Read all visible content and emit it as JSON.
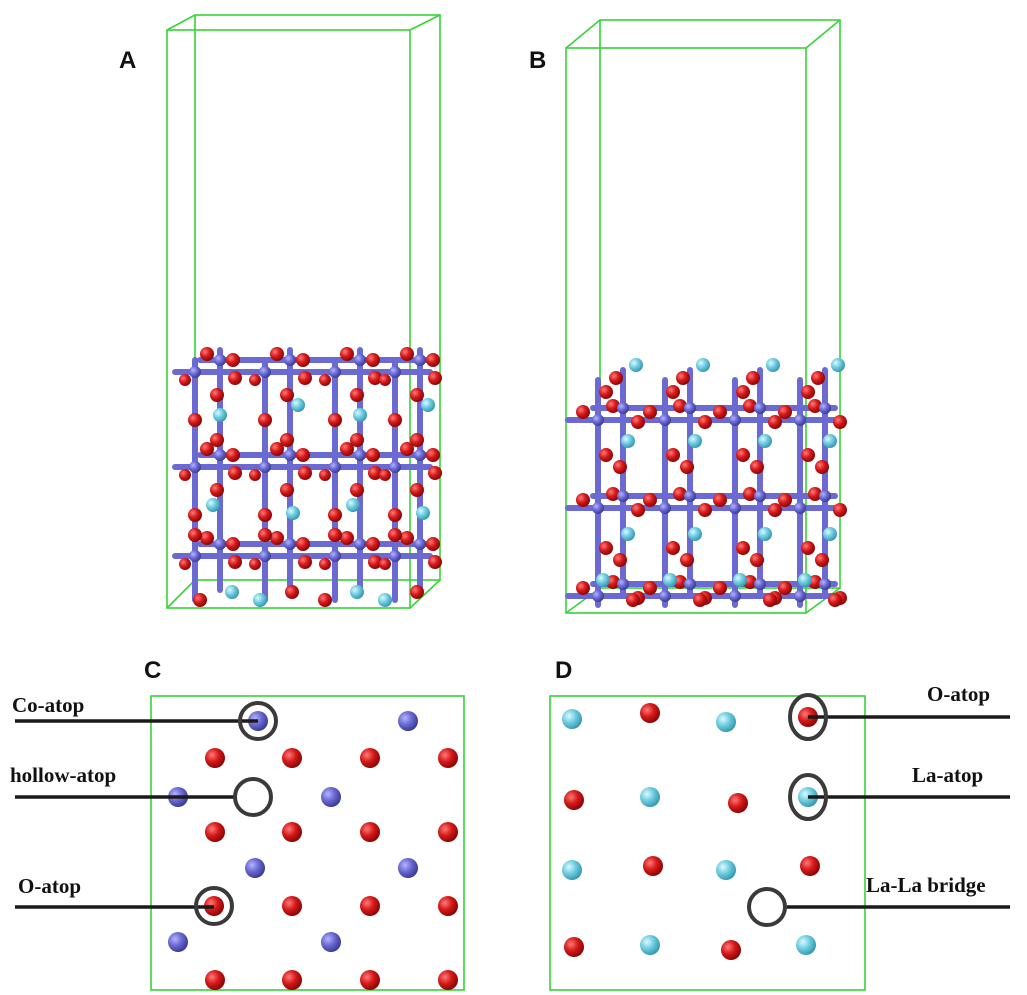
{
  "panels": {
    "a": {
      "label": "A"
    },
    "b": {
      "label": "B"
    },
    "c": {
      "label": "C"
    },
    "d": {
      "label": "D"
    }
  },
  "site_labels": {
    "c": [
      "Co-atop",
      "hollow-atop",
      "O-atop"
    ],
    "d": [
      "O-atop",
      "La-atop",
      "La-La bridge"
    ]
  },
  "atom_colors": {
    "cobalt": "#6a6ad2",
    "oxygen": "#d01818",
    "lanthanum": "#6ecde0",
    "cell_edge": "#36d436",
    "site_marker": "#3a3a3a"
  }
}
